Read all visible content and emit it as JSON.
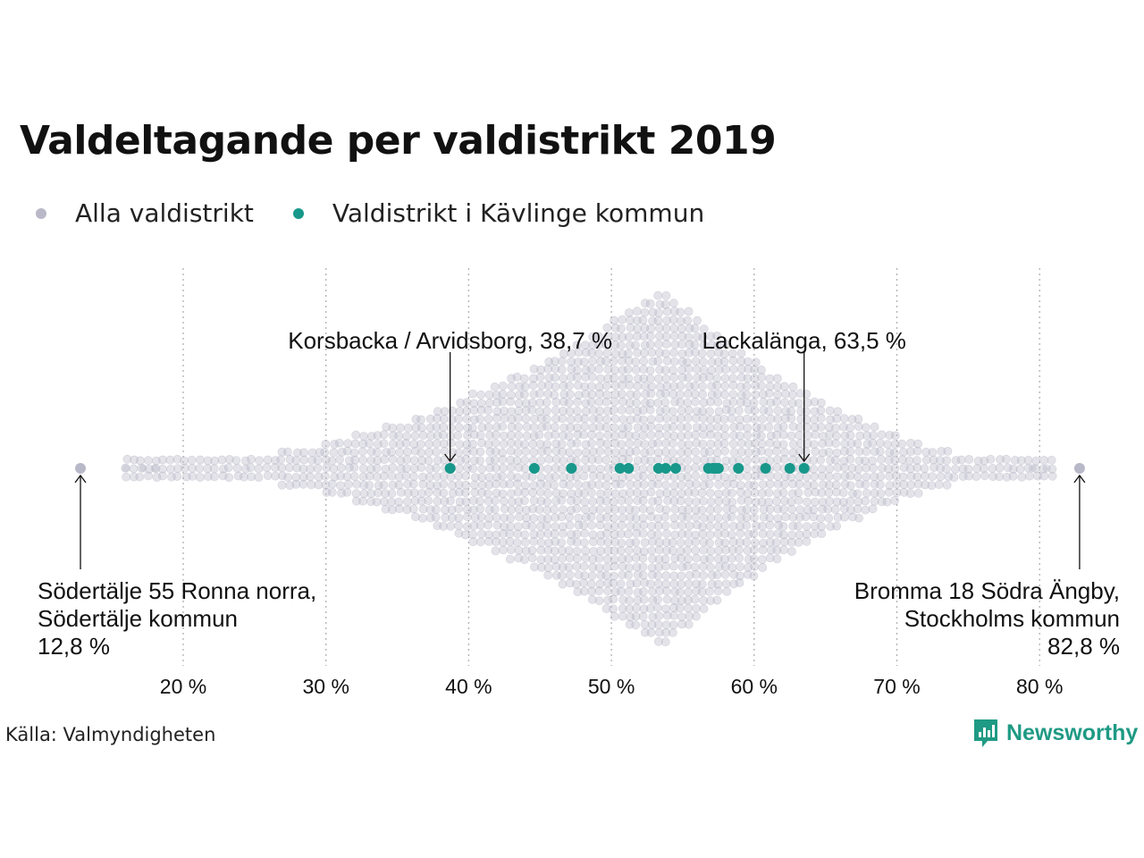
{
  "title": "Valdeltagande per valdistrikt 2019",
  "legend": [
    {
      "label": "Alla valdistrikt",
      "color": "#b9b8c9"
    },
    {
      "label": "Valdistrikt i Kävlinge kommun",
      "color": "#17988a"
    }
  ],
  "source": "Källa: Valmyndigheten",
  "brand": "Newsworthy",
  "chart_data": {
    "type": "scatter",
    "subtype": "beeswarm",
    "title": "Valdeltagande per valdistrikt 2019",
    "x_unit": "%",
    "xlim": [
      12,
      84
    ],
    "x_ticks": [
      20,
      30,
      40,
      50,
      60,
      70,
      80
    ],
    "x_tick_labels": [
      "20 %",
      "30 %",
      "40 %",
      "50 %",
      "60 %",
      "70 %",
      "80 %"
    ],
    "grid": "vertical dotted",
    "legend_position": "top-left",
    "series": [
      {
        "name": "Alla valdistrikt",
        "color": "#b9b8c9",
        "distribution_note": "all districts, range 12.8 – 82.8, peak near 53.5",
        "min": 12.8,
        "max": 82.8,
        "mode": 53.5
      },
      {
        "name": "Valdistrikt i Kävlinge kommun",
        "color": "#17988a",
        "values": [
          38.7,
          44.6,
          47.2,
          50.6,
          51.2,
          53.3,
          53.8,
          54.5,
          56.8,
          57.1,
          57.3,
          57.5,
          58.9,
          60.8,
          62.5,
          63.5
        ]
      }
    ],
    "annotations": [
      {
        "lines": [
          "Korsbacka / Arvidsborg, 38,7 %"
        ],
        "x": 38.7
      },
      {
        "lines": [
          "Lackalänga, 63,5 %"
        ],
        "x": 63.5
      },
      {
        "lines": [
          "Södertälje 55 Ronna norra,",
          "Södertälje kommun",
          "12,8 %"
        ],
        "x": 12.8
      },
      {
        "lines": [
          "Bromma 18 Södra Ängby,",
          "Stockholms kommun",
          "82,8 %"
        ],
        "x": 82.8
      }
    ]
  }
}
